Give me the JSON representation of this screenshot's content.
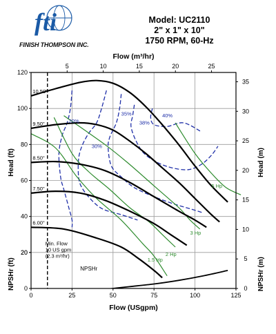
{
  "header": {
    "model": "Model: UC2110",
    "size": "2\" x 1\" x 10\"",
    "speed": "1750 RPM, 60-Hz",
    "brand_mark": "fti",
    "company": "FINISH THOMPSON INC."
  },
  "colors": {
    "impeller": "#000000",
    "efficiency": "#1f2fa8",
    "horsepower": "#2e8b2e",
    "npsh": "#000000",
    "grid": "#9a9a9a",
    "logo_blue": "#1a5aa6"
  },
  "chart_data": {
    "type": "line",
    "xlabel": "Flow (USgpm)",
    "x_top_label": "Flow (m³/hr)",
    "ylabel": "Head (ft)",
    "y_right_label": "Head (m)",
    "y_npsh_label": "NPSHr (ft)",
    "y_npsh_right_label": "NPSHr (m)",
    "xlim": [
      0,
      125
    ],
    "ylim": [
      0,
      120
    ],
    "x_ticks": [
      0,
      25,
      50,
      75,
      100,
      125
    ],
    "x_top_ticks": [
      5,
      10,
      15,
      20,
      25
    ],
    "y_ticks": [
      20,
      40,
      60,
      80,
      100,
      120
    ],
    "y_npsh_ticks": [
      0,
      20
    ],
    "y_right_ticks": [
      10,
      15,
      20,
      25,
      30,
      35
    ],
    "y_npsh_right_ticks": [
      0,
      5
    ],
    "grid": true,
    "impeller_curves": [
      {
        "label": "10.50\"",
        "points": [
          [
            0,
            107
          ],
          [
            15,
            111
          ],
          [
            30,
            114.5
          ],
          [
            40,
            115.5
          ],
          [
            50,
            114
          ],
          [
            60,
            109
          ],
          [
            70,
            101
          ],
          [
            80,
            91
          ],
          [
            90,
            80
          ],
          [
            100,
            68
          ],
          [
            110,
            57
          ],
          [
            120,
            48
          ]
        ]
      },
      {
        "label": "9.50\"",
        "points": [
          [
            0,
            89
          ],
          [
            15,
            91
          ],
          [
            30,
            92
          ],
          [
            40,
            91
          ],
          [
            50,
            88
          ],
          [
            60,
            82
          ],
          [
            70,
            75
          ],
          [
            80,
            67
          ],
          [
            90,
            59
          ],
          [
            100,
            50
          ],
          [
            110,
            41
          ],
          [
            115,
            37
          ]
        ]
      },
      {
        "label": "8.50\"",
        "points": [
          [
            0,
            70
          ],
          [
            15,
            70.5
          ],
          [
            30,
            69
          ],
          [
            45,
            65.5
          ],
          [
            60,
            59
          ],
          [
            75,
            51
          ],
          [
            90,
            43
          ],
          [
            100,
            38
          ],
          [
            107,
            34
          ]
        ]
      },
      {
        "label": "7.50\"",
        "points": [
          [
            0,
            53
          ],
          [
            15,
            54
          ],
          [
            30,
            53
          ],
          [
            45,
            49
          ],
          [
            60,
            43
          ],
          [
            75,
            36
          ],
          [
            85,
            30
          ],
          [
            95,
            24
          ]
        ]
      },
      {
        "label": "6.00\"",
        "points": [
          [
            0,
            34
          ],
          [
            20,
            33
          ],
          [
            40,
            28
          ],
          [
            55,
            23
          ],
          [
            65,
            17
          ],
          [
            75,
            10
          ],
          [
            80,
            6
          ]
        ]
      }
    ],
    "efficiency_curves": [
      {
        "label": "20%",
        "points": [
          [
            25,
            110
          ],
          [
            24,
            100
          ],
          [
            22,
            92
          ],
          [
            19,
            85
          ],
          [
            17,
            75
          ],
          [
            18,
            62
          ],
          [
            20,
            55
          ],
          [
            23,
            45
          ],
          [
            25,
            38
          ],
          [
            25,
            34
          ]
        ]
      },
      {
        "label": "30%",
        "points": [
          [
            46,
            110
          ],
          [
            43,
            100
          ],
          [
            40,
            92
          ],
          [
            35,
            86
          ],
          [
            31,
            79
          ],
          [
            29,
            72
          ],
          [
            29,
            62
          ],
          [
            31,
            56
          ],
          [
            37,
            49
          ],
          [
            44,
            44
          ],
          [
            55,
            41
          ],
          [
            65,
            38
          ]
        ]
      },
      {
        "label": "35%",
        "points": [
          [
            55,
            108
          ],
          [
            54,
            100
          ],
          [
            52,
            92
          ],
          [
            48,
            84
          ],
          [
            47,
            78
          ],
          [
            49,
            68
          ],
          [
            55,
            62
          ],
          [
            63,
            56
          ],
          [
            75,
            51
          ],
          [
            87,
            47
          ],
          [
            98,
            44
          ],
          [
            105,
            42
          ]
        ]
      },
      {
        "label": "38%",
        "points": [
          [
            63,
            102
          ],
          [
            62,
            96
          ],
          [
            61,
            90
          ],
          [
            64,
            82
          ],
          [
            69,
            75
          ],
          [
            77,
            70
          ],
          [
            86,
            67
          ],
          [
            96,
            66
          ],
          [
            104,
            69
          ],
          [
            110,
            74
          ],
          [
            114,
            79
          ]
        ]
      },
      {
        "label": "40%",
        "points": [
          [
            74,
            100
          ],
          [
            73,
            95
          ],
          [
            75,
            91
          ],
          [
            83,
            90
          ],
          [
            93,
            92
          ],
          [
            104,
            87
          ]
        ]
      }
    ],
    "hp_curves": [
      {
        "label": "5 Hp",
        "points": [
          [
            88,
            92
          ],
          [
            100,
            75
          ],
          [
            110,
            64
          ],
          [
            119,
            56
          ],
          [
            128,
            52
          ]
        ]
      },
      {
        "label": "3 Hp",
        "points": [
          [
            20,
            96
          ],
          [
            45,
            80
          ],
          [
            60,
            69
          ],
          [
            75,
            57
          ],
          [
            90,
            45
          ],
          [
            97,
            38
          ],
          [
            103,
            33
          ]
        ]
      },
      {
        "label": "2 Hp",
        "points": [
          [
            14,
            95
          ],
          [
            25,
            75
          ],
          [
            35,
            65
          ],
          [
            48,
            55
          ],
          [
            60,
            45
          ],
          [
            72,
            37
          ],
          [
            80,
            30
          ],
          [
            88,
            23
          ]
        ]
      },
      {
        "label": "1.5 Hp",
        "points": [
          [
            0,
            86
          ],
          [
            15,
            78
          ],
          [
            28,
            62
          ],
          [
            40,
            50
          ],
          [
            55,
            38
          ],
          [
            68,
            25
          ],
          [
            75,
            18
          ],
          [
            83,
            7
          ]
        ]
      }
    ],
    "npshr": {
      "label": "NPSHr",
      "points": [
        [
          0,
          -5
        ],
        [
          20,
          -4
        ],
        [
          40,
          -1
        ],
        [
          50,
          0
        ],
        [
          60,
          1
        ],
        [
          75,
          2.5
        ],
        [
          90,
          4.5
        ],
        [
          105,
          7
        ],
        [
          120,
          10
        ]
      ]
    },
    "min_flow": {
      "x": 10,
      "lines": [
        "Min. Flow",
        "10 US gpm",
        "(2.3 m³/hr)"
      ]
    }
  }
}
